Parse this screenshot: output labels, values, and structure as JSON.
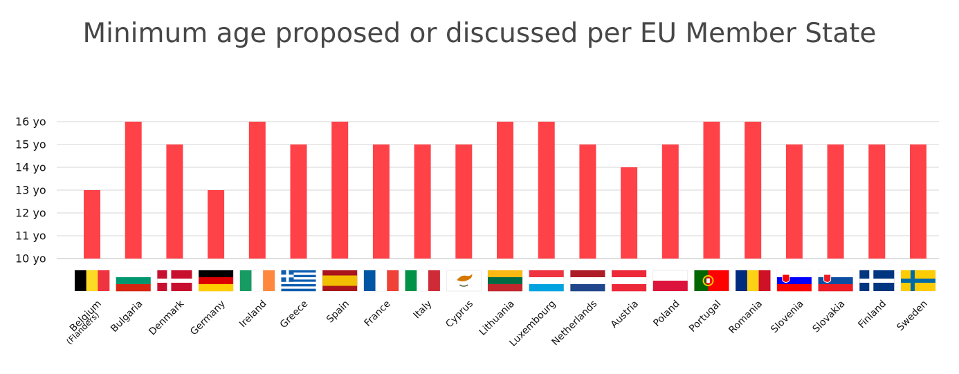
{
  "chart_data": {
    "type": "bar",
    "title": "Minimum age proposed or discussed per EU Member State",
    "xlabel": "",
    "ylabel": "",
    "ylim": [
      10,
      16
    ],
    "y_tick_labels": [
      "10 yo",
      "11 yo",
      "12 yo",
      "13 yo",
      "14 yo",
      "15 yo",
      "16 yo"
    ],
    "grid": true,
    "legend": "none",
    "bar_color": "#FF4148",
    "categories": [
      "Belgium",
      "Bulgaria",
      "Denmark",
      "Germany",
      "Ireland",
      "Greece",
      "Spain",
      "France",
      "Italy",
      "Cyprus",
      "Lithuania",
      "Luxembourg",
      "Netherlands",
      "Austria",
      "Poland",
      "Portugal",
      "Romania",
      "Slovenia",
      "Slovakia",
      "Finland",
      "Sweden"
    ],
    "category_sublabels": {
      "Belgium": "(Flanders)"
    },
    "values": [
      13,
      16,
      15,
      13,
      16,
      15,
      16,
      15,
      15,
      15,
      16,
      16,
      15,
      14,
      15,
      16,
      16,
      15,
      15,
      15,
      15
    ],
    "flags": [
      {
        "country": "Belgium",
        "dir": "v",
        "colors": [
          "#000000",
          "#FDDA24",
          "#EF3340"
        ]
      },
      {
        "country": "Bulgaria",
        "dir": "h",
        "colors": [
          "#FFFFFF",
          "#00966E",
          "#D62612"
        ]
      },
      {
        "country": "Denmark",
        "dir": "cross",
        "colors": [
          "#C8102E",
          "#FFFFFF"
        ]
      },
      {
        "country": "Germany",
        "dir": "h",
        "colors": [
          "#000000",
          "#DD0000",
          "#FFCE00"
        ]
      },
      {
        "country": "Ireland",
        "dir": "v",
        "colors": [
          "#169B62",
          "#FFFFFF",
          "#FF883E"
        ]
      },
      {
        "country": "Greece",
        "dir": "greece",
        "colors": [
          "#0D5EAF",
          "#FFFFFF"
        ]
      },
      {
        "country": "Spain",
        "dir": "hs",
        "colors": [
          "#AA151B",
          "#F1BF00",
          "#AA151B"
        ]
      },
      {
        "country": "France",
        "dir": "v",
        "colors": [
          "#0055A4",
          "#FFFFFF",
          "#EF4135"
        ]
      },
      {
        "country": "Italy",
        "dir": "v",
        "colors": [
          "#009246",
          "#FFFFFF",
          "#CE2B37"
        ]
      },
      {
        "country": "Cyprus",
        "dir": "cyprus",
        "colors": [
          "#FFFFFF",
          "#D57800",
          "#4E5B31"
        ]
      },
      {
        "country": "Lithuania",
        "dir": "h",
        "colors": [
          "#FDB913",
          "#006A44",
          "#C1272D"
        ]
      },
      {
        "country": "Luxembourg",
        "dir": "h",
        "colors": [
          "#EF3340",
          "#FFFFFF",
          "#00A3E0"
        ]
      },
      {
        "country": "Netherlands",
        "dir": "h",
        "colors": [
          "#AE1C28",
          "#FFFFFF",
          "#21468B"
        ]
      },
      {
        "country": "Austria",
        "dir": "h",
        "colors": [
          "#ED2939",
          "#FFFFFF",
          "#ED2939"
        ]
      },
      {
        "country": "Poland",
        "dir": "h2",
        "colors": [
          "#FFFFFF",
          "#DC143C"
        ]
      },
      {
        "country": "Portugal",
        "dir": "portugal",
        "colors": [
          "#006600",
          "#FF0000",
          "#FFCC00"
        ]
      },
      {
        "country": "Romania",
        "dir": "v",
        "colors": [
          "#002B7F",
          "#FCD116",
          "#CE1126"
        ]
      },
      {
        "country": "Slovenia",
        "dir": "hc",
        "colors": [
          "#FFFFFF",
          "#0000FF",
          "#FF0000"
        ]
      },
      {
        "country": "Slovakia",
        "dir": "hc",
        "colors": [
          "#FFFFFF",
          "#0B4EA2",
          "#EE1C25"
        ]
      },
      {
        "country": "Finland",
        "dir": "cross",
        "colors": [
          "#003580",
          "#FFFFFF"
        ]
      },
      {
        "country": "Sweden",
        "dir": "cross",
        "colors": [
          "#FECC02",
          "#006AA7"
        ]
      }
    ]
  }
}
